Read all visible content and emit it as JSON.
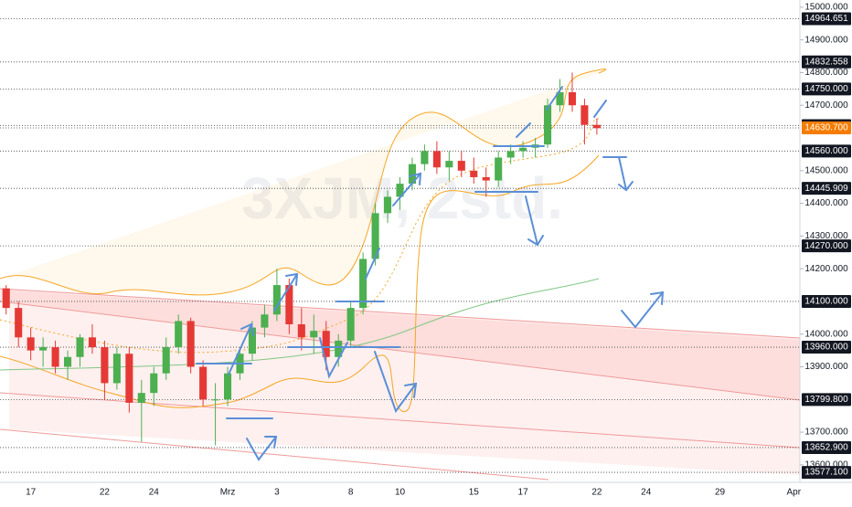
{
  "chart_data": {
    "type": "candlestick",
    "watermark": "3XJM, 2std.",
    "categories": [
      null,
      null,
      "17",
      null,
      null,
      null,
      null,
      null,
      "22",
      null,
      null,
      null,
      "24",
      null,
      null,
      null,
      null,
      null,
      "Mrz",
      null,
      null,
      null,
      "3",
      null,
      null,
      null,
      null,
      null,
      "8",
      null,
      null,
      null,
      "10",
      null,
      null,
      null,
      null,
      null,
      "15",
      null,
      null,
      null,
      "17",
      null,
      null,
      null,
      null,
      null,
      "22",
      null,
      null,
      null,
      "24",
      null,
      null,
      null,
      null,
      null,
      "29",
      null,
      null,
      null,
      null,
      null,
      "Apr"
    ],
    "open": [
      14140,
      14080,
      13990,
      13950,
      13960,
      13900,
      13930,
      13990,
      13960,
      13850,
      13940,
      13790,
      13820,
      13880,
      13960,
      14040,
      13900,
      13800,
      13800,
      13880,
      13940,
      14020,
      14060,
      14150,
      14030,
      13990,
      14010,
      13930,
      13980,
      14080,
      14230,
      14370,
      14420,
      14460,
      14520,
      14560,
      14510,
      14530,
      14500,
      14480,
      14470,
      14540,
      14560,
      14570,
      14580,
      14700,
      14740,
      14700,
      14640,
      null,
      null,
      null,
      null,
      null,
      null,
      null,
      null,
      null,
      null,
      null,
      null,
      null,
      null,
      null,
      null
    ],
    "high": [
      14150,
      14100,
      14020,
      13990,
      13980,
      13950,
      14000,
      14030,
      13980,
      13960,
      13960,
      13860,
      13900,
      13990,
      14060,
      14050,
      13920,
      13850,
      13900,
      13960,
      14040,
      14090,
      14200,
      14170,
      14080,
      14060,
      14040,
      14000,
      14100,
      14250,
      14400,
      14440,
      14480,
      14540,
      14580,
      14590,
      14560,
      14560,
      14540,
      14510,
      14560,
      14580,
      14590,
      14600,
      14720,
      14780,
      14800,
      14720,
      14660,
      null,
      null,
      null,
      null,
      null,
      null,
      null,
      null,
      null,
      null,
      null,
      null,
      null,
      null,
      null,
      null
    ],
    "low": [
      14060,
      13960,
      13920,
      13900,
      13880,
      13860,
      13900,
      13940,
      13800,
      13830,
      13760,
      13670,
      13780,
      13860,
      13940,
      13880,
      13780,
      13660,
      13780,
      13860,
      13920,
      13990,
      14040,
      14000,
      13950,
      13940,
      13890,
      13900,
      13960,
      14060,
      14210,
      14340,
      14380,
      14440,
      14500,
      14490,
      14470,
      14480,
      14460,
      14420,
      14450,
      14520,
      14540,
      14540,
      14570,
      14680,
      14680,
      14580,
      14610,
      null,
      null,
      null,
      null,
      null,
      null,
      null,
      null,
      null,
      null,
      null,
      null,
      null,
      null,
      null,
      null
    ],
    "close": [
      14080,
      13990,
      13950,
      13960,
      13900,
      13930,
      13990,
      13960,
      13850,
      13940,
      13790,
      13820,
      13880,
      13960,
      14040,
      13900,
      13800,
      13800,
      13880,
      13940,
      14020,
      14060,
      14150,
      14030,
      13990,
      14010,
      13930,
      13980,
      14080,
      14230,
      14370,
      14420,
      14460,
      14520,
      14560,
      14510,
      14530,
      14500,
      14480,
      14470,
      14540,
      14560,
      14570,
      14580,
      14700,
      14740,
      14700,
      14640,
      14630,
      null,
      null,
      null,
      null,
      null,
      null,
      null,
      null,
      null,
      null,
      null,
      null,
      null,
      null,
      null,
      null
    ],
    "up_color": "#4caf50",
    "down_color": "#e53935",
    "ylim": [
      13541,
      15022
    ],
    "yticks": [
      {
        "value": 15000,
        "label": "15000.000"
      },
      {
        "value": 14900,
        "label": "14900.000"
      },
      {
        "value": 14800,
        "label": "14800.000"
      },
      {
        "value": 14700,
        "label": "14700.000"
      },
      {
        "value": 14500,
        "label": "14500.000"
      },
      {
        "value": 14400,
        "label": "14400.000"
      },
      {
        "value": 14300,
        "label": "14300.000"
      },
      {
        "value": 14200,
        "label": "14200.000"
      },
      {
        "value": 14000,
        "label": "14000.000"
      },
      {
        "value": 13900,
        "label": "13900.000"
      },
      {
        "value": 13700,
        "label": "13700.000"
      },
      {
        "value": 13600,
        "label": "13600.000"
      }
    ],
    "levels": [
      14964.651,
      14832.558,
      {
        "value": 14750,
        "label": "14750.000"
      },
      14637.757,
      {
        "value": 14630.7,
        "label": "14630.700"
      },
      {
        "value": 14560,
        "label": "14560.000"
      },
      14445.909,
      {
        "value": 14270,
        "label": "14270.000"
      },
      {
        "value": 14100,
        "label": "14100.000"
      },
      {
        "value": 13960,
        "label": "13960.000"
      },
      {
        "value": 13799.8,
        "label": "13799.800"
      },
      {
        "value": 13652.9,
        "label": "13652.900"
      },
      {
        "value": 13577.1,
        "label": "13577.100"
      }
    ],
    "last_price_color": "#f57c00"
  }
}
